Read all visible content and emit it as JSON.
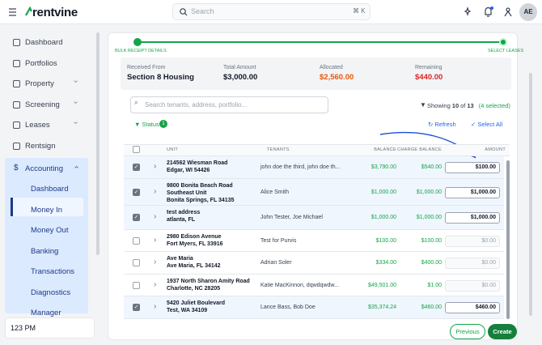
{
  "header": {
    "logo": "rentvine",
    "search_placeholder": "Search",
    "search_shortcut": "⌘ K",
    "avatar": "AE"
  },
  "sidebar": {
    "items": [
      {
        "label": "Dashboard",
        "chevron": false
      },
      {
        "label": "Portfolios",
        "chevron": false
      },
      {
        "label": "Property",
        "chevron": true
      },
      {
        "label": "Screening",
        "chevron": true
      },
      {
        "label": "Leases",
        "chevron": true
      },
      {
        "label": "Rentsign",
        "chevron": false
      }
    ],
    "accounting": {
      "label": "Accounting",
      "subitems": [
        {
          "label": "Dashboard",
          "active": false
        },
        {
          "label": "Money In",
          "active": true
        },
        {
          "label": "Money Out",
          "active": false
        },
        {
          "label": "Banking",
          "active": false
        },
        {
          "label": "Transactions",
          "active": false
        },
        {
          "label": "Diagnostics",
          "active": false
        },
        {
          "label": "Manager",
          "active": false
        }
      ]
    },
    "user": "123 PM"
  },
  "steps": [
    "BULK RECEIPT DETAILS",
    "SELECT LEASES"
  ],
  "summary": [
    {
      "label": "Received From",
      "value": "Section 8 Housing",
      "tone": "default"
    },
    {
      "label": "Total Amount",
      "value": "$3,000.00",
      "tone": "default"
    },
    {
      "label": "Allocated",
      "value": "$2,560.00",
      "tone": "orange"
    },
    {
      "label": "Remaining",
      "value": "$440.00",
      "tone": "red"
    }
  ],
  "filters": {
    "search_placeholder": "Search tenants, address, portfolio...",
    "showing_prefix": "Showing",
    "shown": "10",
    "of": "of",
    "total": "13",
    "selected": "(4 selected)",
    "status": "Status",
    "status_count": "1",
    "refresh": "Refresh",
    "select_all": "Select All"
  },
  "table": {
    "columns": [
      "UNIT",
      "TENANTS",
      "BALANCE",
      "CHARGE BALANCE",
      "AMOUNT"
    ],
    "rows": [
      {
        "checked": true,
        "unit": "214562 Wiesman Road",
        "city": "Edgar, WI 54426",
        "tenants": "john doe the third, john doe th...",
        "balance": "$3,790.00",
        "charge_balance": "$540.00",
        "amount": "$100.00"
      },
      {
        "checked": true,
        "unit": "9800 Bonita Beach Road Southeast Unit",
        "city": "Bonita Springs, FL 34135",
        "tenants": "Alice Smith",
        "balance": "$1,000.00",
        "charge_balance": "$1,000.00",
        "amount": "$1,000.00"
      },
      {
        "checked": true,
        "unit": "test address",
        "city": "atlanta, FL",
        "tenants": "John Tester, Joe Michael",
        "balance": "$1,000.00",
        "charge_balance": "$1,000.00",
        "amount": "$1,000.00"
      },
      {
        "checked": false,
        "unit": "2980 Edison Avenue",
        "city": "Fort Myers, FL 33916",
        "tenants": "Test for Purvis",
        "balance": "$100.00",
        "charge_balance": "$100.00",
        "amount": "$0.00"
      },
      {
        "checked": false,
        "unit": "Ave Maria",
        "city": "Ave Maria, FL 34142",
        "tenants": "Adrian Soler",
        "balance": "$334.00",
        "charge_balance": "$400.00",
        "amount": "$0.00"
      },
      {
        "checked": false,
        "unit": "1937 North Sharon Amity Road",
        "city": "Charlotte, NC 28205",
        "tenants": "Katie MacKinnon, dqwdqwdw...",
        "balance": "$49,501.00",
        "charge_balance": "$1.00",
        "amount": "$0.00"
      },
      {
        "checked": true,
        "unit": "5420 Juliet Boulevard",
        "city": "Test, WA 34109",
        "tenants": "Lance Bass, Bob Doe",
        "balance": "$35,374.24",
        "charge_balance": "$460.00",
        "amount": "$460.00"
      }
    ]
  },
  "footer": {
    "previous": "Previous",
    "create": "Create"
  }
}
